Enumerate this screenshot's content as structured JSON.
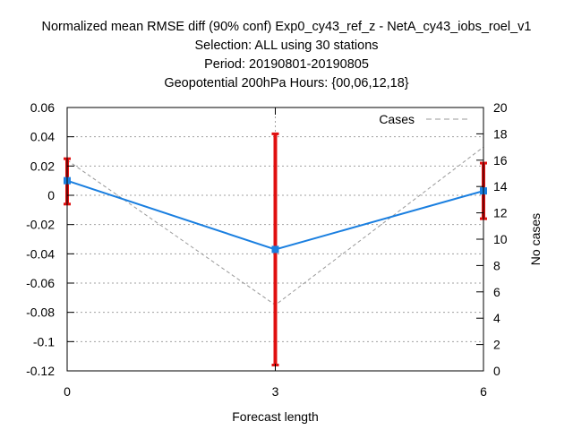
{
  "chart_data": {
    "type": "line",
    "title_lines": [
      "Normalized mean RMSE diff (90% conf) Exp0_cy43_ref_z - NetA_cy43_iobs_roel_v1",
      "Selection: ALL using    30 stations",
      "Period: 20190801-20190805",
      "Geopotential 200hPa   Hours: {00,06,12,18}"
    ],
    "xlabel": "Forecast length",
    "ylabel": "",
    "y2label": "No cases",
    "x": [
      0,
      3,
      6
    ],
    "xlim": [
      0,
      6
    ],
    "ylim": [
      -0.12,
      0.06
    ],
    "y2lim": [
      0,
      20
    ],
    "x_ticks": [
      "0",
      "3",
      "6"
    ],
    "y_ticks": [
      "0.06",
      "0.04",
      "0.02",
      "0",
      "-0.02",
      "-0.04",
      "-0.06",
      "-0.08",
      "-0.1",
      "-0.12"
    ],
    "y2_ticks": [
      "20",
      "18",
      "16",
      "14",
      "12",
      "10",
      "8",
      "6",
      "4",
      "2",
      "0"
    ],
    "grid": true,
    "legend_position": "top-right",
    "series": [
      {
        "name": "",
        "axis": "left",
        "color": "#1a7fe0",
        "values": [
          0.01,
          -0.037,
          0.003
        ],
        "error_low": [
          -0.006,
          -0.116,
          -0.016
        ],
        "error_high": [
          0.025,
          0.042,
          0.022
        ],
        "error_color": "#e01010"
      },
      {
        "name": "Cases",
        "axis": "right",
        "color": "#999999",
        "style": "dashed",
        "values": [
          16,
          5,
          17
        ]
      }
    ]
  }
}
